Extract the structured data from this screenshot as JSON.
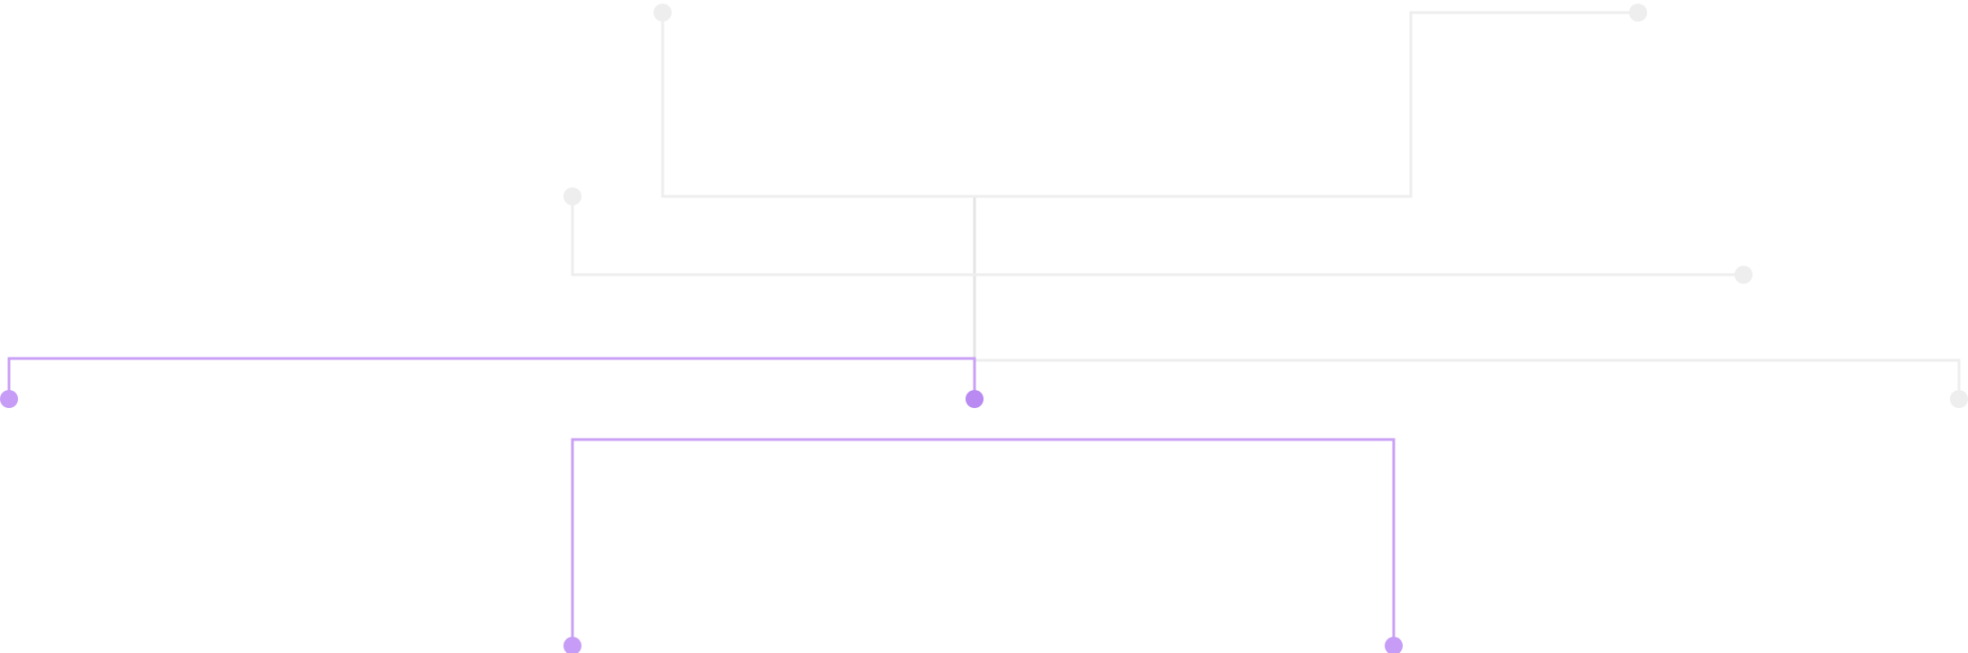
{
  "colors": {
    "background": "#ffffff",
    "inactive_line": "#eeeeee",
    "inactive_trunk": "#e4e4e4",
    "inactive_node": "#eeeeee",
    "active_line": "#c9a0f5",
    "active_node": "#c79cf7",
    "hub_node": "#b98af2"
  },
  "diagram": {
    "inactive_branches": [
      {
        "name": "branch-top-left"
      },
      {
        "name": "branch-top-right"
      },
      {
        "name": "branch-middle-left"
      },
      {
        "name": "branch-middle-right"
      },
      {
        "name": "branch-lower-right"
      }
    ],
    "active_branches": [
      {
        "name": "branch-active-left"
      },
      {
        "name": "branch-active-bottom-left"
      },
      {
        "name": "branch-active-bottom-right"
      }
    ]
  }
}
